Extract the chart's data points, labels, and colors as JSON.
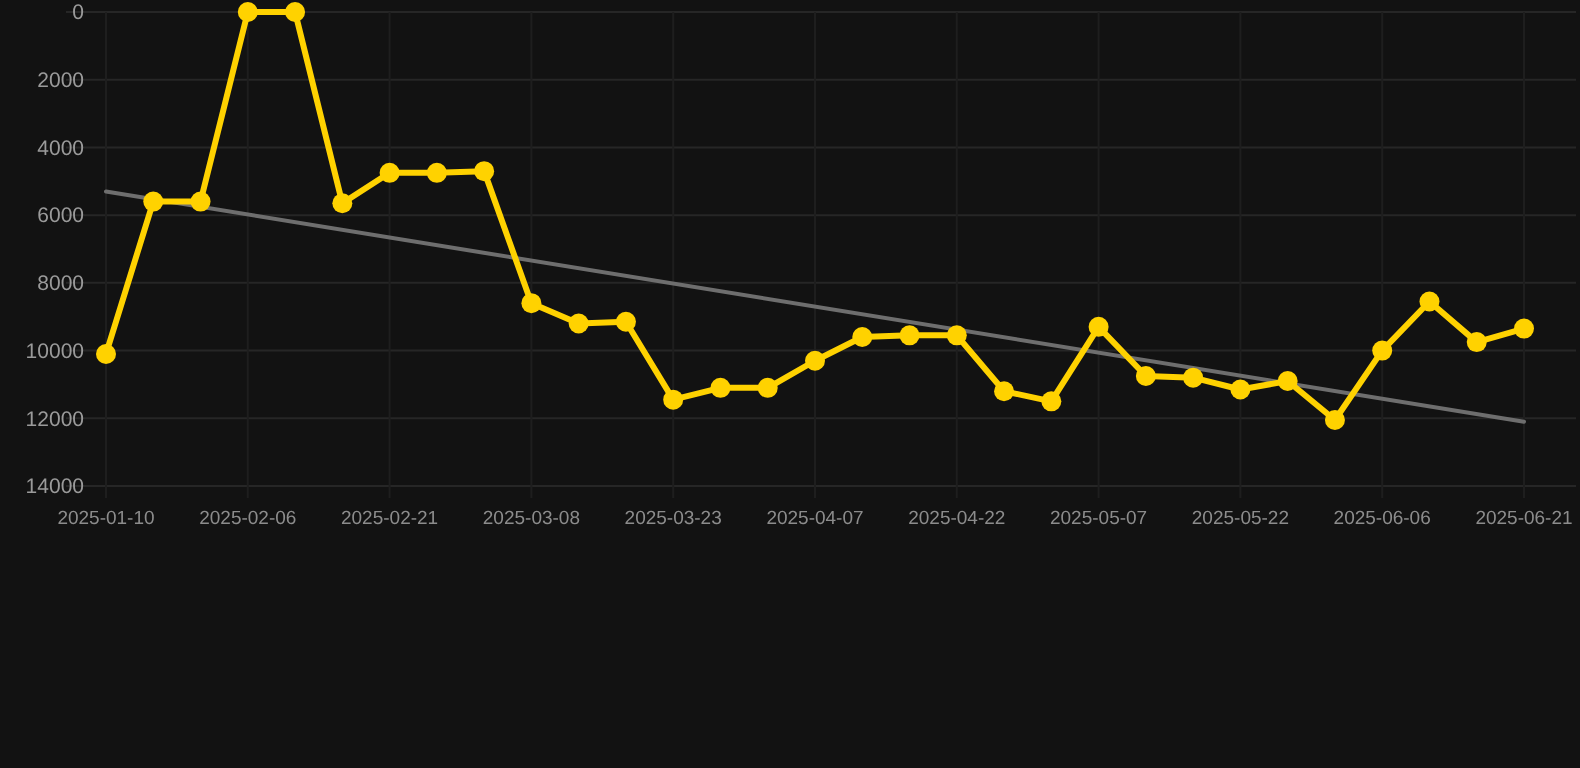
{
  "chart_data": {
    "type": "line",
    "categories": [
      "2025-01-10",
      null,
      null,
      "2025-02-06",
      null,
      null,
      "2025-02-21",
      null,
      null,
      "2025-03-08",
      null,
      null,
      "2025-03-23",
      null,
      null,
      "2025-04-07",
      null,
      null,
      "2025-04-22",
      null,
      null,
      "2025-05-07",
      null,
      null,
      "2025-05-22",
      null,
      null,
      "2025-06-06",
      null,
      null,
      "2025-06-21"
    ],
    "series": [
      {
        "color": "#ffd200",
        "marker": "circle",
        "values": [
          10100,
          5600,
          5600,
          0,
          0,
          5650,
          4750,
          4750,
          4700,
          8600,
          9200,
          9150,
          11450,
          11100,
          11100,
          10300,
          9600,
          9550,
          9550,
          11200,
          11500,
          9300,
          10750,
          10800,
          11150,
          10900,
          12050,
          10000,
          8550,
          9750,
          9350
        ]
      },
      {
        "type": "line",
        "color": "#6e6e6e",
        "marker": "none",
        "values": [
          5300,
          null,
          null,
          null,
          null,
          null,
          null,
          null,
          null,
          null,
          null,
          null,
          null,
          null,
          null,
          null,
          null,
          null,
          null,
          null,
          null,
          null,
          null,
          null,
          null,
          null,
          null,
          null,
          null,
          null,
          12100
        ]
      }
    ],
    "ylim": [
      14000,
      0
    ],
    "yticks": [
      0,
      2000,
      4000,
      6000,
      8000,
      10000,
      12000,
      14000
    ],
    "grid": true,
    "line_style": "solid"
  }
}
